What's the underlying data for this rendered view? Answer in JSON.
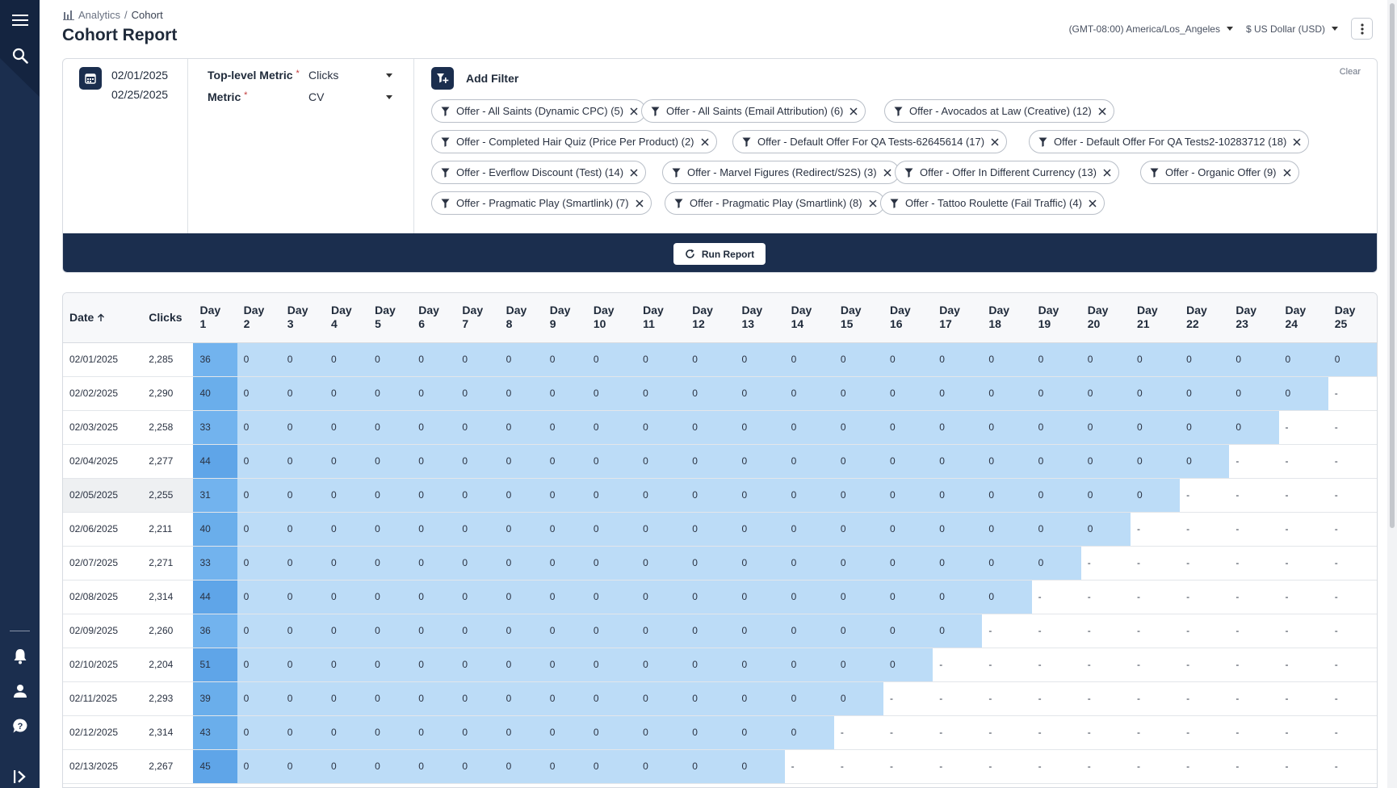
{
  "breadcrumb": {
    "parent": "Analytics",
    "separator": "/",
    "current": "Cohort"
  },
  "page_title": "Cohort Report",
  "header": {
    "timezone": "(GMT-08:00) America/Los_Angeles",
    "currency": "$ US Dollar (USD)"
  },
  "date_range": {
    "start": "02/01/2025",
    "end": "02/25/2025"
  },
  "metrics": {
    "top_level_label": "Top-level Metric",
    "top_level_value": "Clicks",
    "metric_label": "Metric",
    "metric_value": "CV",
    "required_mark": "*"
  },
  "filters": {
    "add_label": "Add Filter",
    "clear_label": "Clear",
    "chips": [
      "Offer - All Saints (Dynamic CPC) (5)",
      "Offer - All Saints (Email Attribution) (6)",
      "Offer - Avocados at Law (Creative) (12)",
      "Offer - Completed Hair Quiz (Price Per Product) (2)",
      "Offer - Default Offer For QA Tests-62645614 (17)",
      "Offer - Default Offer For QA Tests2-10283712 (18)",
      "Offer - Everflow Discount (Test) (14)",
      "Offer - Marvel Figures (Redirect/S2S) (3)",
      "Offer - Offer In Different Currency (13)",
      "Offer - Organic Offer (9)",
      "Offer - Pragmatic Play (Smartlink) (7)",
      "Offer - Pragmatic Play (Smartlink) (8)",
      "Offer - Tattoo Roulette (Fail Traffic) (4)"
    ]
  },
  "run_report_label": "Run Report",
  "table": {
    "date_header": "Date",
    "clicks_header": "Clicks",
    "day_word": "Day",
    "day_numbers": [
      "1",
      "2",
      "3",
      "4",
      "5",
      "6",
      "7",
      "8",
      "9",
      "10",
      "11",
      "12",
      "13",
      "14",
      "15",
      "16",
      "17",
      "18",
      "19",
      "20",
      "21",
      "22",
      "23",
      "24",
      "25"
    ],
    "zero": "0",
    "empty": "-",
    "rows": [
      {
        "date": "02/01/2025",
        "clicks": "2,285",
        "day1": "36"
      },
      {
        "date": "02/02/2025",
        "clicks": "2,290",
        "day1": "40"
      },
      {
        "date": "02/03/2025",
        "clicks": "2,258",
        "day1": "33"
      },
      {
        "date": "02/04/2025",
        "clicks": "2,277",
        "day1": "44"
      },
      {
        "date": "02/05/2025",
        "clicks": "2,255",
        "day1": "31"
      },
      {
        "date": "02/06/2025",
        "clicks": "2,211",
        "day1": "40"
      },
      {
        "date": "02/07/2025",
        "clicks": "2,271",
        "day1": "33"
      },
      {
        "date": "02/08/2025",
        "clicks": "2,314",
        "day1": "44"
      },
      {
        "date": "02/09/2025",
        "clicks": "2,260",
        "day1": "36"
      },
      {
        "date": "02/10/2025",
        "clicks": "2,204",
        "day1": "51"
      },
      {
        "date": "02/11/2025",
        "clicks": "2,293",
        "day1": "39"
      },
      {
        "date": "02/12/2025",
        "clicks": "2,314",
        "day1": "43"
      },
      {
        "date": "02/13/2025",
        "clicks": "2,267",
        "day1": "45"
      }
    ]
  },
  "colors": {
    "nav": "#1b2e4e",
    "cell_light": "#bcdcf7",
    "cell_mid": "#72b3ee",
    "cell_dark": "#5fa5e8"
  },
  "icons": {
    "menu": "menu-icon",
    "search": "search-icon",
    "bell": "bell-icon",
    "user": "user-icon",
    "help": "help-icon",
    "expand": "expand-icon"
  }
}
